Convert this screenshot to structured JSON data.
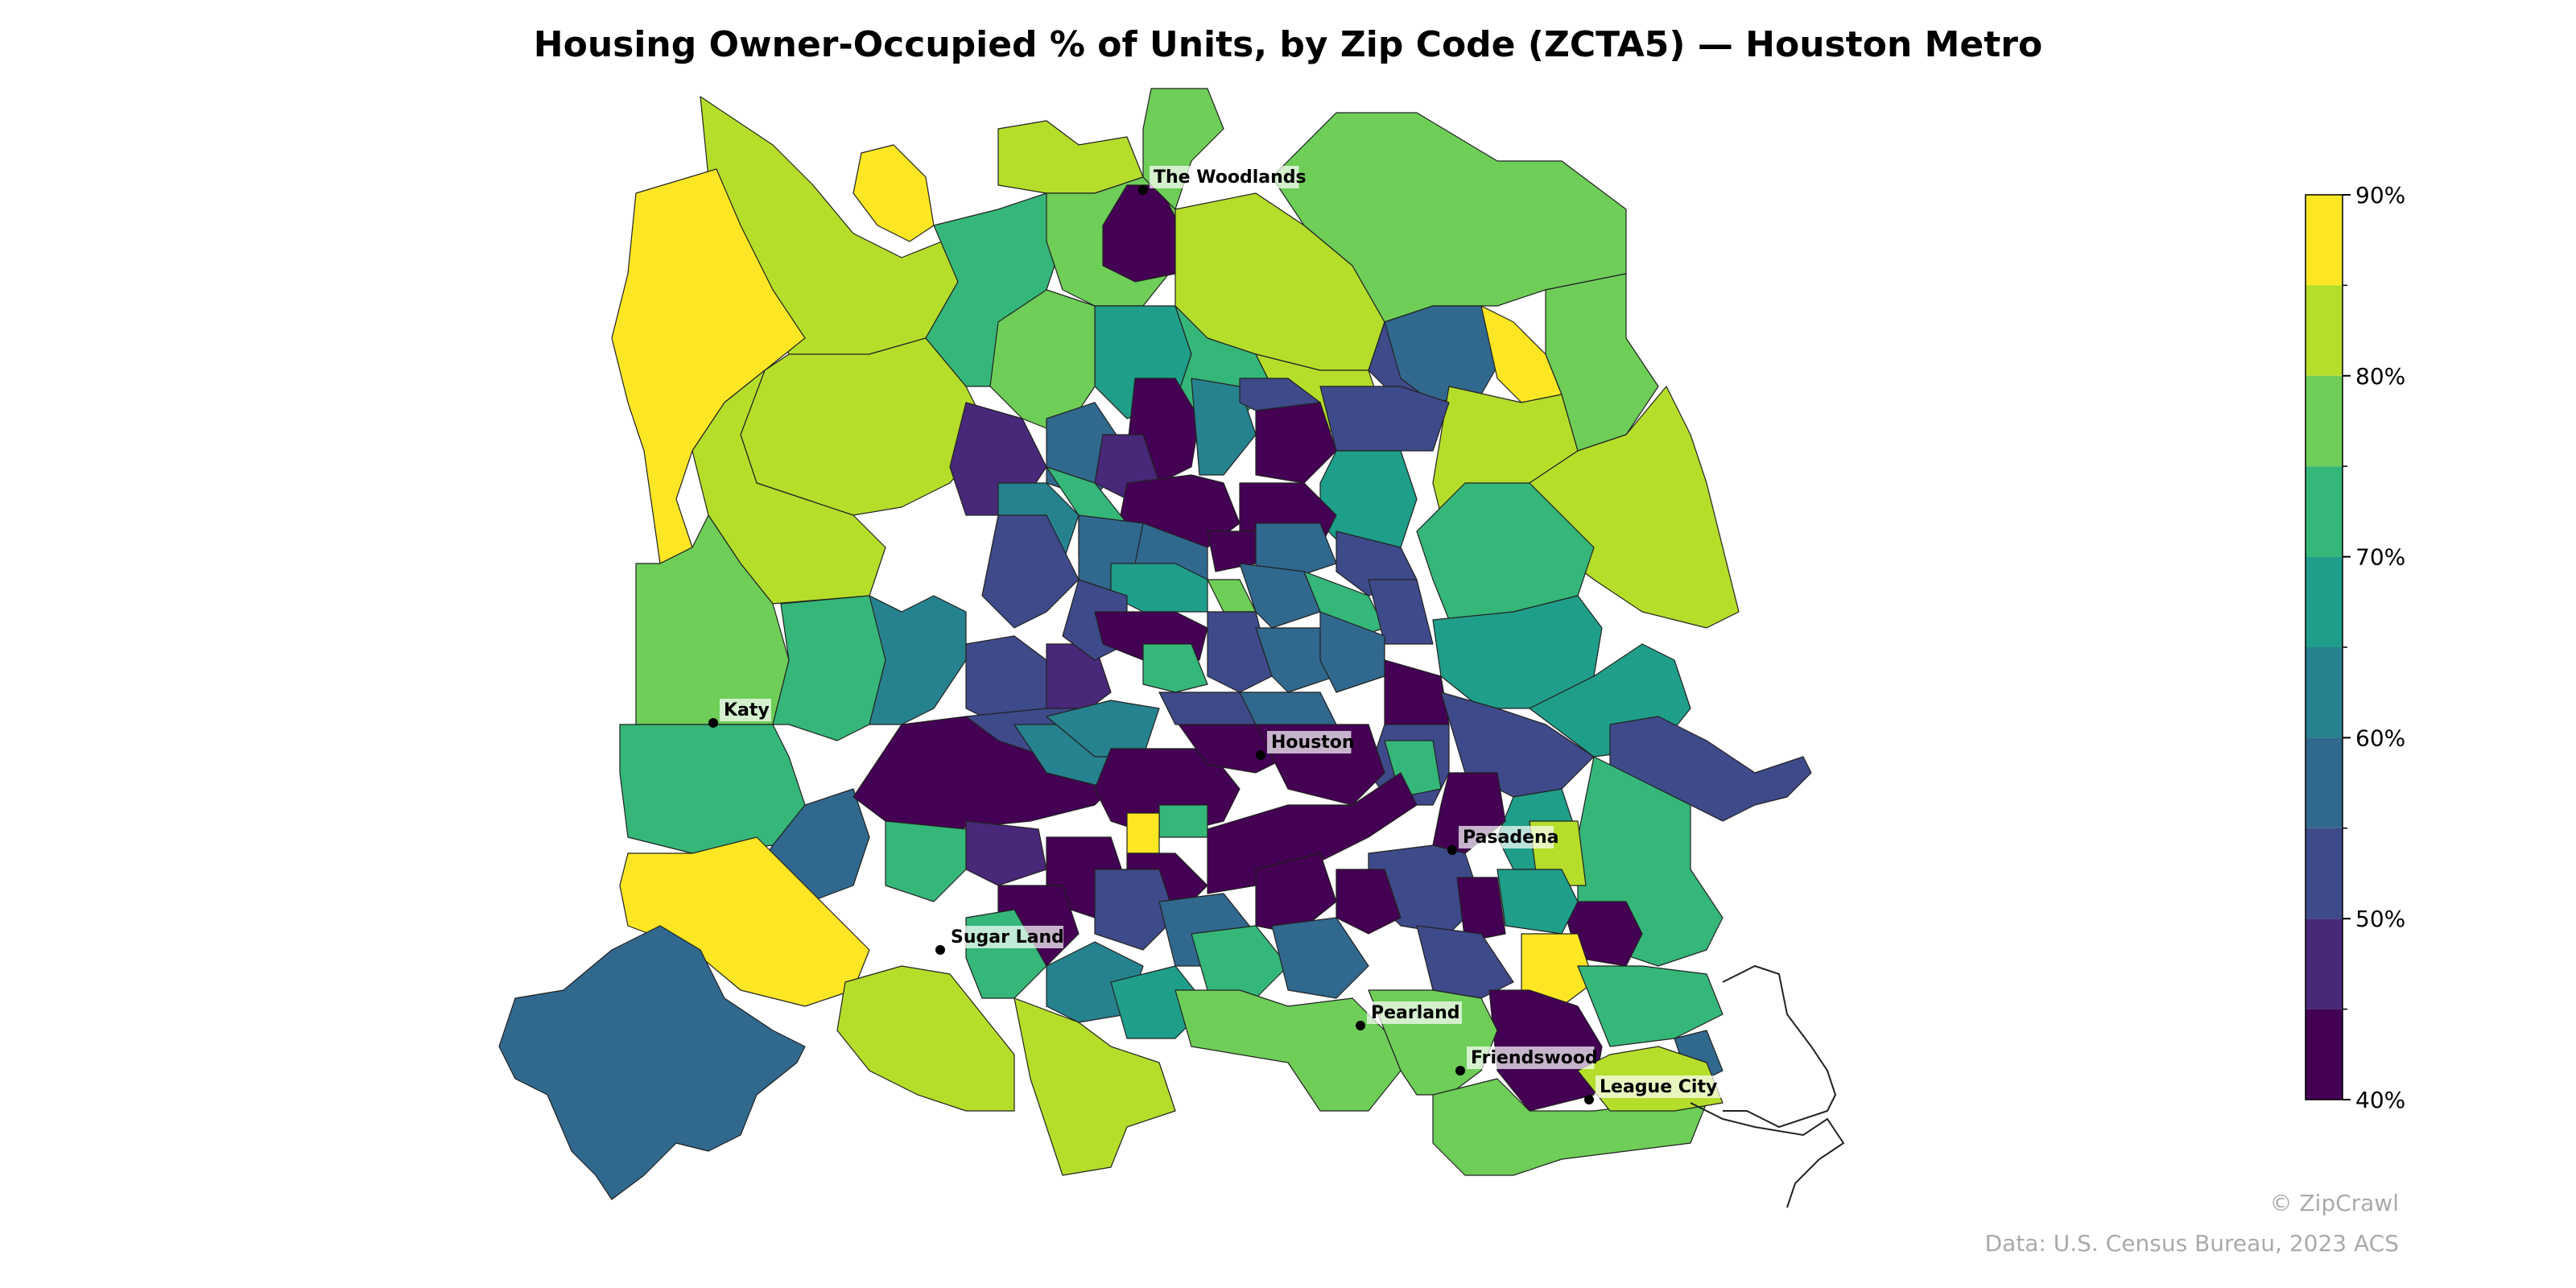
{
  "title": "Housing Owner-Occupied % of Units, by Zip Code (ZCTA5) — Houston Metro",
  "credit": "© ZipCrawl",
  "source": "Data: U.S. Census Bureau, 2023 ACS",
  "colorbar": {
    "colors": [
      "#440154",
      "#482878",
      "#3e4a89",
      "#31688e",
      "#26828e",
      "#1f9e89",
      "#35b779",
      "#6ece58",
      "#b5de2b",
      "#fde725"
    ],
    "bin_edges": [
      40,
      45,
      50,
      55,
      60,
      65,
      70,
      75,
      80,
      85,
      90
    ],
    "tick_values": [
      40,
      50,
      60,
      70,
      80,
      90
    ],
    "tick_labels": [
      "40%",
      "50%",
      "60%",
      "70%",
      "80%",
      "90%"
    ]
  },
  "cities": [
    {
      "name": "The Woodlands"
    },
    {
      "name": "Katy"
    },
    {
      "name": "Houston"
    },
    {
      "name": "Pasadena"
    },
    {
      "name": "Sugar Land"
    },
    {
      "name": "Pearland"
    },
    {
      "name": "Friendswood"
    },
    {
      "name": "League City"
    }
  ]
}
